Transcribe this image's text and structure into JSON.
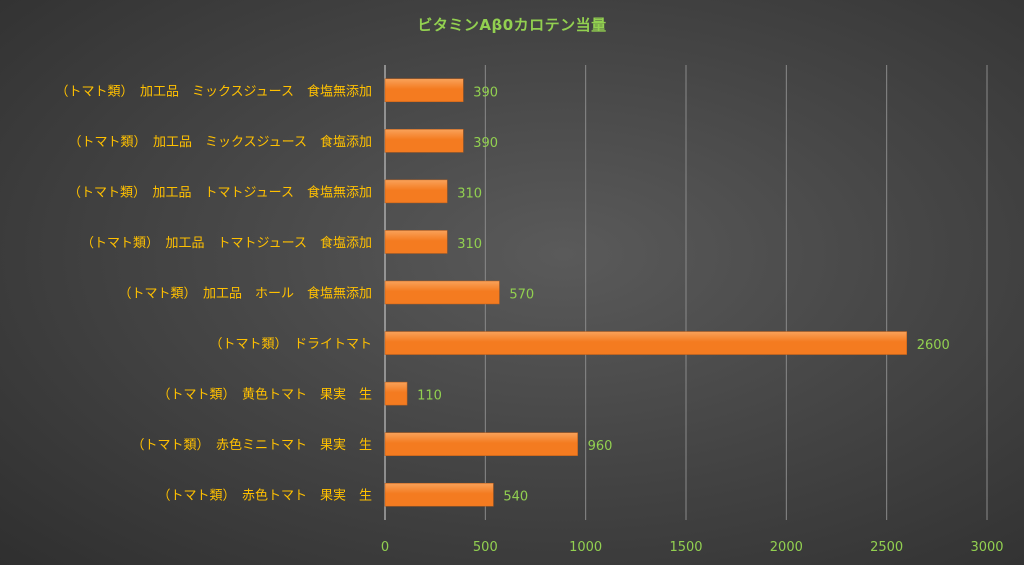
{
  "chart_data": {
    "type": "bar",
    "orientation": "horizontal",
    "title": "ビタミンAβ0カロテン当量",
    "categories": [
      "（トマト類）　加工品　ミックスジュース　食塩無添加",
      "（トマト類）　加工品　ミックスジュース　食塩添加",
      "（トマト類）　加工品　トマトジュース　食塩無添加",
      "（トマト類）　加工品　トマトジュース　食塩添加",
      "（トマト類）　加工品　ホール　食塩無添加",
      "（トマト類）　ドライトマト",
      "（トマト類）　黄色トマト　果実　生",
      "（トマト類）　赤色ミニトマト　果実　生",
      "（トマト類）　赤色トマト　果実　生"
    ],
    "values": [
      390,
      390,
      310,
      310,
      570,
      2600,
      110,
      960,
      540
    ],
    "xlim": [
      0,
      3000
    ],
    "x_ticks": [
      "0",
      "500",
      "1000",
      "1500",
      "2000",
      "2500",
      "3000"
    ],
    "grid": true,
    "legend": "none",
    "colors": {
      "bar": "#f47b20",
      "bar_highlight": "#f9a25a",
      "category_text": "#ffc000",
      "value_text": "#92d050",
      "gridline": "#8a8a8a"
    }
  }
}
